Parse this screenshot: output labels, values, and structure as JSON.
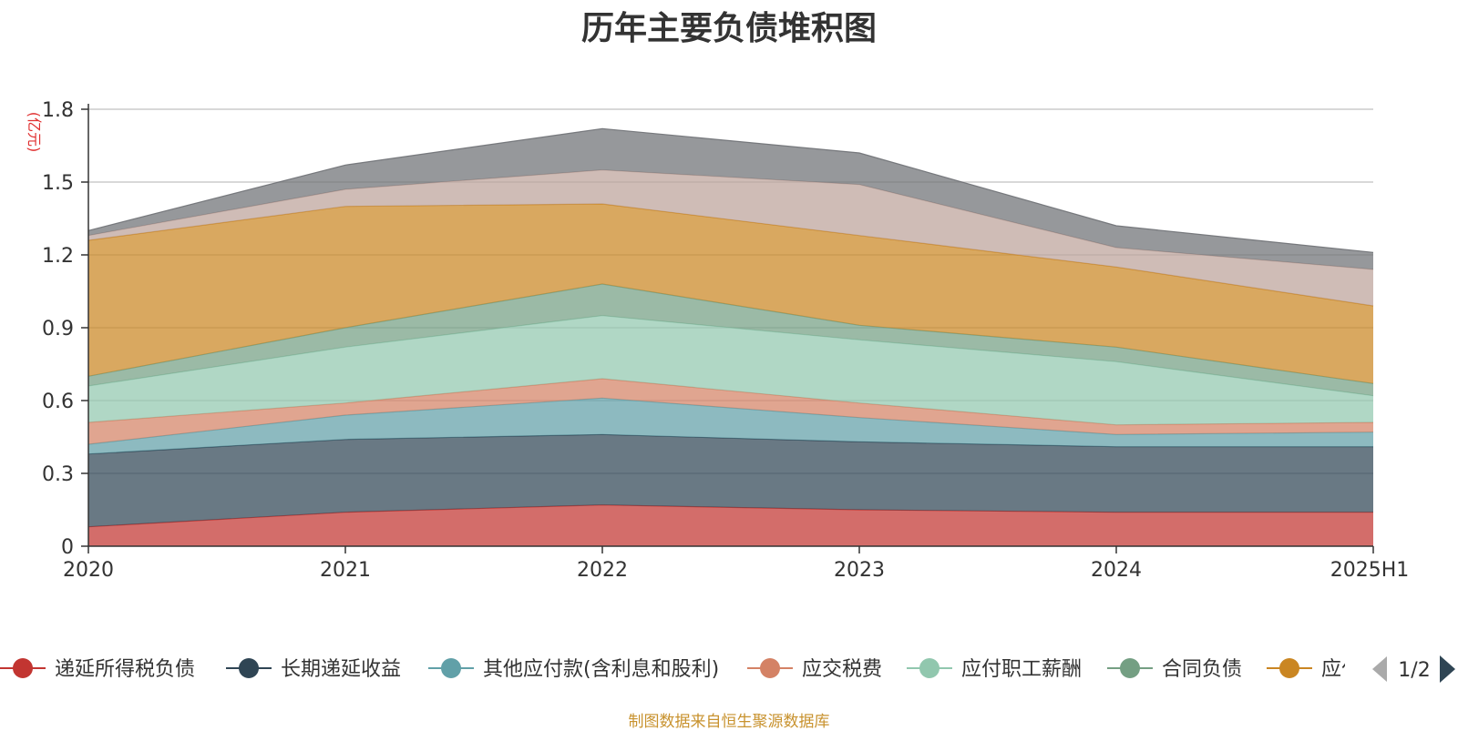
{
  "chart_data": {
    "type": "area",
    "stacked": true,
    "title": "历年主要负债堆积图",
    "y_unit_label": "(亿元)",
    "categories": [
      "2020",
      "2021",
      "2022",
      "2023",
      "2024",
      "2025H1"
    ],
    "ylim": [
      0,
      1.8
    ],
    "yticks": [
      "0",
      "0.3",
      "0.6",
      "0.9",
      "1.2",
      "1.5",
      "1.8"
    ],
    "grid": true,
    "series": [
      {
        "name": "递延所得税负债",
        "color": "#c23531",
        "values": [
          0.08,
          0.14,
          0.17,
          0.15,
          0.14,
          0.14
        ]
      },
      {
        "name": "长期递延收益",
        "color": "#2f4554",
        "values": [
          0.3,
          0.3,
          0.29,
          0.28,
          0.27,
          0.27
        ]
      },
      {
        "name": "其他应付款(含利息和股利)",
        "color": "#61a0a8",
        "values": [
          0.04,
          0.1,
          0.15,
          0.1,
          0.05,
          0.06
        ]
      },
      {
        "name": "应交税费",
        "color": "#d48265",
        "values": [
          0.09,
          0.05,
          0.08,
          0.06,
          0.04,
          0.04
        ]
      },
      {
        "name": "应付职工薪酬",
        "color": "#91c7ae",
        "values": [
          0.15,
          0.23,
          0.26,
          0.26,
          0.26,
          0.11
        ]
      },
      {
        "name": "合同负债",
        "color": "#749f83",
        "values": [
          0.04,
          0.08,
          0.13,
          0.06,
          0.06,
          0.05
        ]
      },
      {
        "name": "应付账款",
        "color": "#ca8622",
        "values": [
          0.56,
          0.5,
          0.33,
          0.37,
          0.33,
          0.32
        ]
      },
      {
        "name": "",
        "color": "#bda29a",
        "values": [
          0.02,
          0.07,
          0.14,
          0.21,
          0.08,
          0.15
        ]
      },
      {
        "name": "",
        "color": "#6e7074",
        "values": [
          0.02,
          0.1,
          0.17,
          0.13,
          0.09,
          0.07
        ]
      }
    ],
    "legend": {
      "position": "bottom",
      "page_indicator": "1/2"
    }
  },
  "footer": {
    "note": "制图数据来自恒生聚源数据库"
  }
}
